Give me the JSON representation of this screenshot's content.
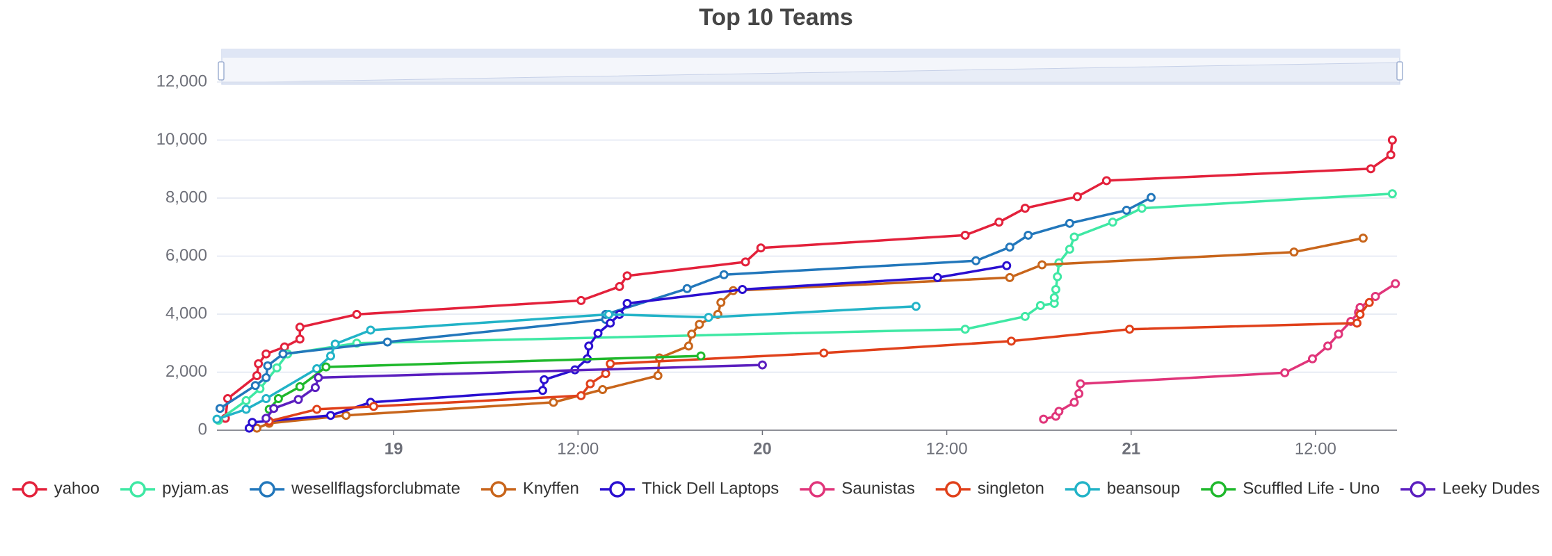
{
  "chart_data": {
    "type": "line",
    "title": "Top 10 Teams",
    "xlim": [
      12.5,
      89.3
    ],
    "xticks": [
      {
        "value": 24,
        "label": "19"
      },
      {
        "value": 36,
        "label": "12:00"
      },
      {
        "value": 48,
        "label": "20"
      },
      {
        "value": 60,
        "label": "12:00"
      },
      {
        "value": 72,
        "label": "21"
      },
      {
        "value": 84,
        "label": "12:00"
      }
    ],
    "ylim": [
      0,
      12000
    ],
    "yticks": [
      0,
      {
        "value": 2000,
        "label": "2,000"
      },
      {
        "value": 4000,
        "label": "4,000"
      },
      {
        "value": 6000,
        "label": "6,000"
      },
      {
        "value": 8000,
        "label": "8,000"
      },
      {
        "value": 10000,
        "label": "10,000"
      },
      {
        "value": 12000,
        "label": "12,000"
      }
    ],
    "grid": true,
    "legend": "bottom",
    "series": [
      {
        "name": "yahoo",
        "color": "#e3213b",
        "x": [
          13.05,
          13.2,
          15.1,
          15.2,
          15.7,
          16.9,
          17.9,
          17.9,
          21.6,
          36.2,
          38.7,
          39.2,
          46.9,
          47.9,
          61.2,
          63.4,
          65.1,
          68.5,
          70.4,
          87.6,
          88.9,
          89.0
        ],
        "values": [
          410,
          1090,
          1880,
          2290,
          2630,
          2870,
          3140,
          3550,
          3990,
          4470,
          4950,
          5320,
          5800,
          6280,
          6720,
          7170,
          7650,
          8050,
          8600,
          9010,
          9490,
          10000
        ]
      },
      {
        "name": "pyjam.as",
        "color": "#3fe8a4",
        "x": [
          12.6,
          14.4,
          15.3,
          16.4,
          17.1,
          21.6,
          61.2,
          65.1,
          66.1,
          67.0,
          67.0,
          67.1,
          67.2,
          67.3,
          68.0,
          68.3,
          70.8,
          72.7,
          89.0
        ],
        "values": [
          340,
          1020,
          1430,
          2150,
          2630,
          3000,
          3480,
          3920,
          4300,
          4370,
          4570,
          4850,
          5290,
          5770,
          6240,
          6660,
          7170,
          7650,
          8150
        ]
      },
      {
        "name": "wesellflagsforclubmate",
        "color": "#2277bb",
        "x": [
          12.7,
          15.0,
          15.7,
          15.8,
          16.8,
          23.6,
          37.8,
          37.8,
          43.1,
          45.5,
          61.9,
          64.1,
          65.3,
          68.0,
          71.7,
          73.3
        ],
        "values": [
          750,
          1540,
          1810,
          2220,
          2630,
          3040,
          3820,
          3990,
          4880,
          5360,
          5840,
          6310,
          6720,
          7130,
          7580,
          8020
        ]
      },
      {
        "name": "Knyffen",
        "color": "#c8651b",
        "x": [
          15.1,
          15.9,
          20.9,
          34.4,
          37.6,
          41.2,
          41.3,
          43.2,
          43.4,
          43.9,
          45.1,
          45.3,
          46.1,
          64.1,
          66.2,
          82.6,
          87.1
        ],
        "values": [
          70,
          240,
          510,
          960,
          1400,
          1880,
          2490,
          2900,
          3310,
          3650,
          3990,
          4400,
          4810,
          5260,
          5700,
          6140,
          6620
        ]
      },
      {
        "name": "Thick Dell Laptops",
        "color": "#2a0fd0",
        "x": [
          14.6,
          14.8,
          19.9,
          22.5,
          33.7,
          33.8,
          35.8,
          36.6,
          36.7,
          37.3,
          38.1,
          38.7,
          39.2,
          46.7,
          59.4,
          63.9
        ],
        "values": [
          70,
          270,
          510,
          960,
          1370,
          1740,
          2080,
          2460,
          2900,
          3340,
          3690,
          3990,
          4370,
          4850,
          5260,
          5670
        ]
      },
      {
        "name": "Saunistas",
        "color": "#e0357a",
        "x": [
          66.3,
          67.1,
          67.3,
          68.3,
          68.6,
          68.7,
          82.0,
          83.8,
          84.8,
          85.5,
          86.3,
          86.8,
          86.9,
          87.9,
          89.2
        ],
        "values": [
          380,
          480,
          650,
          960,
          1260,
          1600,
          1980,
          2460,
          2900,
          3310,
          3750,
          4060,
          4230,
          4610,
          5050
        ]
      },
      {
        "name": "singleton",
        "color": "#e0401a",
        "x": [
          15.9,
          19.0,
          22.7,
          36.2,
          36.8,
          37.8,
          38.1,
          52.0,
          64.2,
          71.9,
          86.7,
          86.9,
          87.5
        ],
        "values": [
          310,
          720,
          820,
          1190,
          1600,
          1950,
          2290,
          2660,
          3070,
          3480,
          3690,
          3990,
          4400
        ]
      },
      {
        "name": "beansoup",
        "color": "#22b3c7",
        "x": [
          12.5,
          14.4,
          15.7,
          19.0,
          19.9,
          20.2,
          22.5,
          38.0,
          44.5,
          58.0
        ],
        "values": [
          380,
          720,
          1090,
          2120,
          2560,
          2970,
          3450,
          3990,
          3890,
          4270
        ]
      },
      {
        "name": "Scuffled Life - Uno",
        "color": "#1fb82c",
        "x": [
          15.9,
          16.5,
          17.9,
          19.6,
          44.0
        ],
        "values": [
          720,
          1090,
          1500,
          2180,
          2560
        ]
      },
      {
        "name": "Leeky Dudes",
        "color": "#5b1fbf",
        "x": [
          15.7,
          16.2,
          17.8,
          18.9,
          19.1,
          48.0
        ],
        "values": [
          410,
          750,
          1060,
          1470,
          1810,
          2250
        ]
      }
    ]
  }
}
